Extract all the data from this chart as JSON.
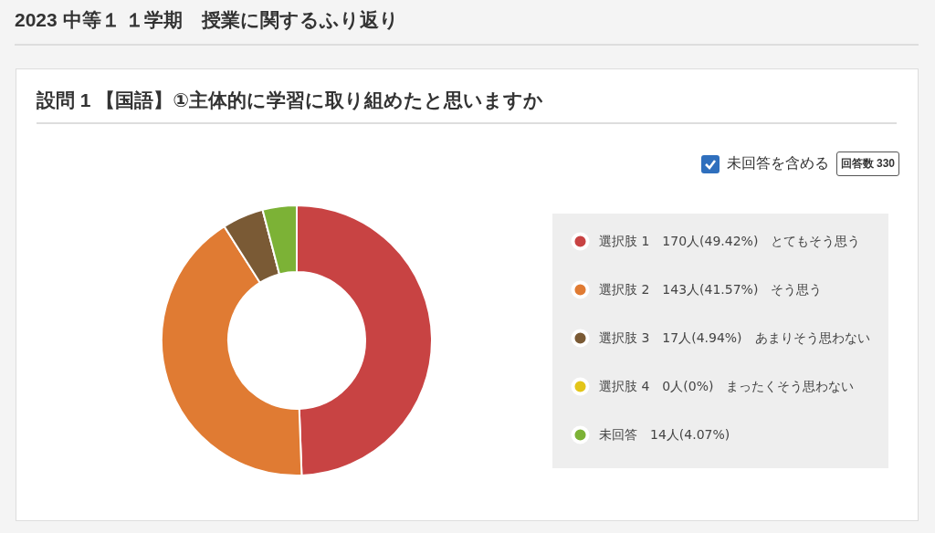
{
  "chart_data": {
    "type": "donut",
    "title": "2023 中等１ １学期　授業に関するふり返り",
    "subtitle": "設問 1 【国語】①主体的に学習に取り組めたと思いますか",
    "categories": [
      "選択肢 1　170人(49.42%)　とてもそう思う",
      "選択肢 2　143人(41.57%)　そう思う",
      "選択肢 3　17人(4.94%)　あまりそう思わない",
      "選択肢 4　0人(0%)　まったくそう思わない",
      "未回答　14人(4.07%)"
    ],
    "values": [
      170,
      143,
      17,
      0,
      14
    ],
    "colors": [
      "#c84343",
      "#e07b33",
      "#7a5a35",
      "#e3c519",
      "#7cb236"
    ],
    "annotations": [
      "未回答を含める",
      "回答数 330"
    ],
    "legend": "right"
  }
}
